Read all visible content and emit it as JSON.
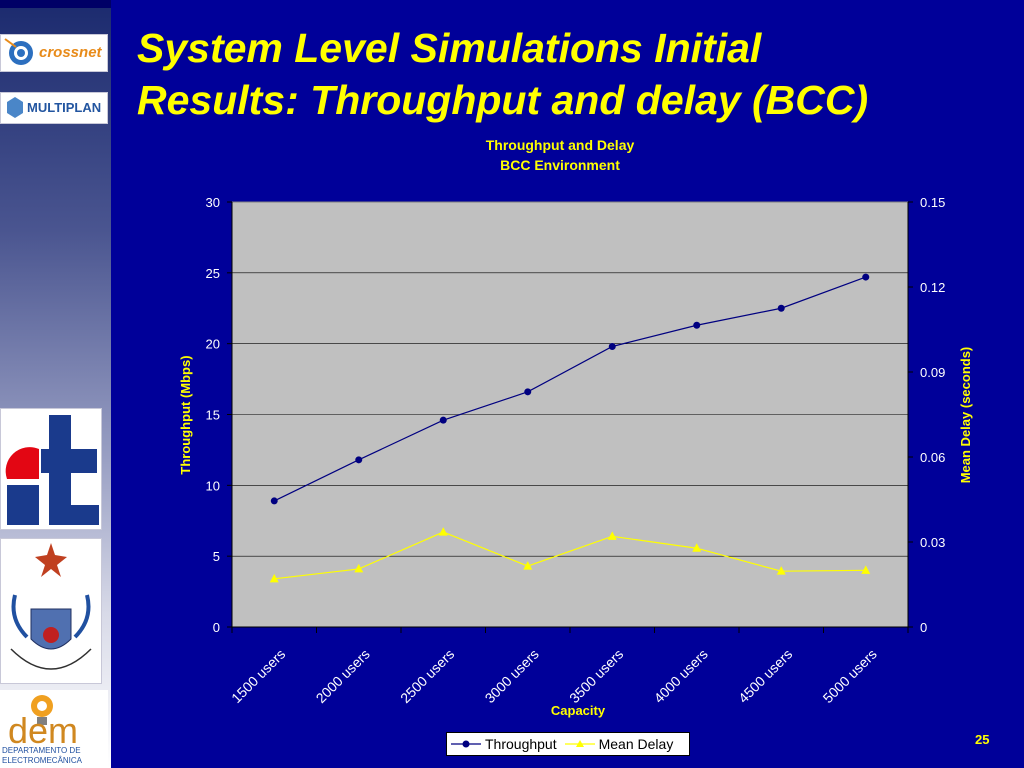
{
  "slide": {
    "title_line1": "System Level Simulations Initial",
    "title_line2": "Results: Throughput and delay (BCC)",
    "page_number": "25"
  },
  "logos": {
    "crossnet": "crossnet",
    "multiplan": "MULTIPLAN",
    "dem_main": "dem",
    "dem_sub1": "DEPARTAMENTO DE",
    "dem_sub2": "ELECTROMECÂNICA"
  },
  "colors": {
    "background": "#000099",
    "title": "#ffff00",
    "plot_area": "#c0c0c0",
    "throughput": "#000080",
    "mean_delay": "#ffff00"
  },
  "chart_data": {
    "type": "line",
    "title": "Throughput and Delay",
    "subtitle": "BCC Environment",
    "xlabel": "Capacity",
    "ylabel": "Throughput (Mbps)",
    "y2label": "Mean Delay (seconds)",
    "categories": [
      "1500 users",
      "2000 users",
      "2500 users",
      "3000 users",
      "3500 users",
      "4000 users",
      "4500 users",
      "5000 users"
    ],
    "ylim": [
      0,
      30
    ],
    "yticks": [
      "0",
      "5",
      "10",
      "15",
      "20",
      "25",
      "30"
    ],
    "y2lim": [
      0,
      0.15
    ],
    "y2ticks": [
      "0",
      "0.03",
      "0.06",
      "0.09",
      "0.12",
      "0.15"
    ],
    "grid": true,
    "legend_position": "bottom",
    "series": [
      {
        "name": "Throughput",
        "axis": "left",
        "marker": "circle",
        "values": [
          8.9,
          11.8,
          14.6,
          16.6,
          19.8,
          21.3,
          22.5,
          24.7
        ]
      },
      {
        "name": "Mean Delay",
        "axis": "right",
        "marker": "triangle",
        "values": [
          0.017,
          0.0205,
          0.0335,
          0.0215,
          0.032,
          0.0278,
          0.0197,
          0.02
        ]
      }
    ]
  }
}
